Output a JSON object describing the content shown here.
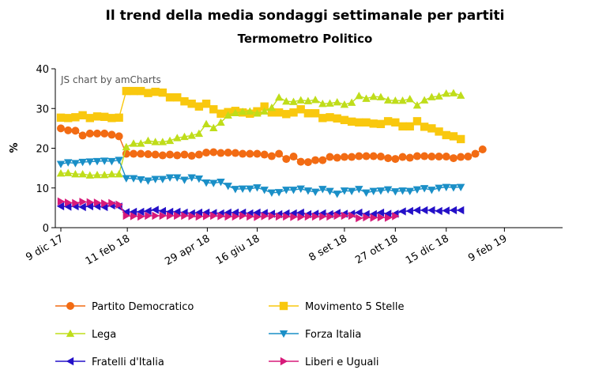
{
  "chart_data": {
    "type": "line",
    "title": "Il trend della media sondaggi settimanale per partiti",
    "subtitle": "Termometro Politico",
    "ylabel": "%",
    "ylim": [
      0,
      40
    ],
    "yticks": [
      0,
      10,
      20,
      30,
      40
    ],
    "grid": false,
    "credit": "JS chart by amCharts",
    "legend_position": "bottom",
    "x_start": "2017-12-09",
    "x_end": "2019-04-06",
    "xtick_labels": [
      {
        "label": "9 dic 17",
        "date": "2017-12-09"
      },
      {
        "label": "11 feb 18",
        "date": "2018-02-11"
      },
      {
        "label": "29 apr 18",
        "date": "2018-04-29"
      },
      {
        "label": "16 giu 18",
        "date": "2018-06-16"
      },
      {
        "label": "8 set 18",
        "date": "2018-09-08"
      },
      {
        "label": "27 ott 18",
        "date": "2018-10-27"
      },
      {
        "label": "15 dic 18",
        "date": "2018-12-15"
      },
      {
        "label": "9 feb 19",
        "date": "2019-02-09"
      }
    ],
    "series": [
      {
        "name": "Partito Democratico",
        "color": "#f26b13",
        "marker": "circle",
        "start": "2017-12-09",
        "step_days": 7,
        "values": [
          25.0,
          24.5,
          24.4,
          23.2,
          23.7,
          23.7,
          23.7,
          23.4,
          23.0,
          18.6,
          18.6,
          18.6,
          18.5,
          18.4,
          18.2,
          18.4,
          18.2,
          18.4,
          18.1,
          18.4,
          18.9,
          19.0,
          18.8,
          18.9,
          18.8,
          18.6,
          18.6,
          18.6,
          18.4,
          18.0,
          18.6,
          17.3,
          17.9,
          16.6,
          16.5,
          17.0,
          17.0,
          17.8,
          17.6,
          17.8,
          17.8,
          18.0,
          18.0,
          18.0,
          17.9,
          17.5,
          17.3,
          17.8,
          17.6,
          18.0,
          18.0,
          17.9,
          17.9,
          17.9,
          17.5,
          17.8,
          17.9,
          18.6,
          19.7
        ]
      },
      {
        "name": "Movimento 5 Stelle",
        "color": "#f9c80e",
        "marker": "square",
        "start": "2017-12-09",
        "step_days": 7,
        "values": [
          27.7,
          27.6,
          27.8,
          28.3,
          27.6,
          28.0,
          27.9,
          27.6,
          27.7,
          34.4,
          34.4,
          34.4,
          33.9,
          34.2,
          34.0,
          32.8,
          32.8,
          31.8,
          31.2,
          30.5,
          31.2,
          29.8,
          28.7,
          29.1,
          29.4,
          29.0,
          28.7,
          29.3,
          30.5,
          29.0,
          29.0,
          28.6,
          29.0,
          29.8,
          28.8,
          28.8,
          27.6,
          27.8,
          27.5,
          27.1,
          26.7,
          26.5,
          26.5,
          26.2,
          26.1,
          26.8,
          26.5,
          25.5,
          25.5,
          26.8,
          25.4,
          25.0,
          24.2,
          23.3,
          23.0,
          22.3
        ]
      },
      {
        "name": "Lega",
        "color": "#bfdd1a",
        "marker": "triangle-up",
        "start": "2017-12-09",
        "step_days": 7,
        "values": [
          13.7,
          13.8,
          13.5,
          13.5,
          13.2,
          13.3,
          13.3,
          13.5,
          13.5,
          20.3,
          21.2,
          21.2,
          21.9,
          21.6,
          21.6,
          21.9,
          22.6,
          22.9,
          23.2,
          23.7,
          26.1,
          25.1,
          26.5,
          28.3,
          28.9,
          29.2,
          29.3,
          28.8,
          29.3,
          30.2,
          32.8,
          31.8,
          31.7,
          32.1,
          31.9,
          32.2,
          31.2,
          31.3,
          31.6,
          31.0,
          31.5,
          33.2,
          32.5,
          33.0,
          32.9,
          32.1,
          32.0,
          32.0,
          32.4,
          30.8,
          32.1,
          32.9,
          33.1,
          33.8,
          33.9,
          33.3
        ]
      },
      {
        "name": "Forza Italia",
        "color": "#1a8fc7",
        "marker": "triangle-down",
        "start": "2017-12-09",
        "step_days": 7,
        "values": [
          16.0,
          16.4,
          16.2,
          16.5,
          16.6,
          16.7,
          16.8,
          16.7,
          17.0,
          12.4,
          12.4,
          12.1,
          11.8,
          12.2,
          12.2,
          12.6,
          12.6,
          12.0,
          12.6,
          12.3,
          11.3,
          11.2,
          11.5,
          10.5,
          9.7,
          9.8,
          9.8,
          10.1,
          9.5,
          8.8,
          8.9,
          9.5,
          9.5,
          9.8,
          9.3,
          9.0,
          9.7,
          9.2,
          8.5,
          9.3,
          9.2,
          9.7,
          8.8,
          9.2,
          9.3,
          9.6,
          9.1,
          9.3,
          9.2,
          9.6,
          9.9,
          9.5,
          10.0,
          10.2,
          10.1,
          10.2
        ]
      },
      {
        "name": "Fratelli d'Italia",
        "color": "#2410c8",
        "marker": "triangle-left",
        "start": "2017-12-09",
        "step_days": 7,
        "values": [
          5.4,
          5.3,
          5.4,
          5.2,
          5.4,
          5.4,
          5.2,
          5.6,
          5.3,
          3.9,
          4.0,
          4.0,
          4.2,
          4.5,
          4.2,
          4.0,
          4.0,
          3.8,
          3.6,
          3.8,
          3.8,
          3.7,
          3.6,
          3.8,
          3.8,
          3.8,
          3.6,
          3.8,
          3.7,
          3.5,
          3.4,
          3.6,
          3.6,
          3.8,
          3.4,
          3.5,
          3.6,
          3.4,
          3.7,
          3.5,
          3.5,
          3.8,
          3.4,
          3.4,
          3.8,
          3.5,
          3.5,
          4.1,
          4.2,
          4.4,
          4.4,
          4.4,
          4.2,
          4.3,
          4.4,
          4.4
        ]
      },
      {
        "name": "Liberi e Uguali",
        "color": "#d71a7a",
        "marker": "triangle-right",
        "start": "2017-12-09",
        "step_days": 7,
        "values": [
          6.6,
          6.3,
          6.2,
          6.5,
          6.4,
          6.3,
          6.1,
          6.2,
          5.8,
          3.0,
          2.9,
          2.8,
          3.0,
          3.0,
          3.0,
          3.0,
          3.0,
          3.0,
          2.9,
          2.8,
          2.9,
          3.0,
          2.9,
          2.8,
          2.8,
          3.0,
          2.8,
          2.7,
          2.9,
          2.9,
          2.8,
          2.8,
          2.7,
          2.7,
          2.8,
          2.8,
          2.8,
          2.8,
          3.0,
          3.0,
          3.0,
          2.4,
          2.6,
          2.5,
          2.6,
          2.5,
          2.9
        ]
      }
    ]
  }
}
